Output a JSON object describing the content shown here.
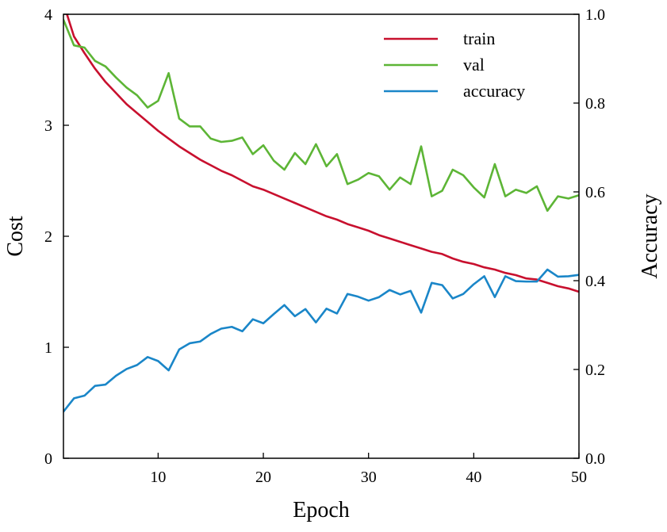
{
  "chart_data": {
    "type": "line",
    "xlabel": "Epoch",
    "ylabel_left": "Cost",
    "ylabel_right": "Accuracy",
    "xlim": [
      1,
      50
    ],
    "ylim_left": [
      0,
      4
    ],
    "ylim_right": [
      0.0,
      1.0
    ],
    "x_ticks": [
      10,
      20,
      30,
      40,
      50
    ],
    "x_tick_labels": [
      "10",
      "20",
      "30",
      "40",
      "50"
    ],
    "y_left_ticks": [
      0,
      1,
      2,
      3,
      4
    ],
    "y_left_tick_labels": [
      "0",
      "1",
      "2",
      "3",
      "4"
    ],
    "y_right_ticks": [
      0.0,
      0.2,
      0.4,
      0.6,
      0.8,
      1.0
    ],
    "y_right_tick_labels": [
      "0.0",
      "0.2",
      "0.4",
      "0.6",
      "0.8",
      "1.0"
    ],
    "grid": false,
    "legend_position": "top-right",
    "x": [
      1,
      2,
      3,
      4,
      5,
      6,
      7,
      8,
      9,
      10,
      11,
      12,
      13,
      14,
      15,
      16,
      17,
      18,
      19,
      20,
      21,
      22,
      23,
      24,
      25,
      26,
      27,
      28,
      29,
      30,
      31,
      32,
      33,
      34,
      35,
      36,
      37,
      38,
      39,
      40,
      41,
      42,
      43,
      44,
      45,
      46,
      47,
      48,
      49,
      50
    ],
    "series": [
      {
        "name": "train",
        "axis": "left",
        "color": "#c8102e",
        "values": [
          4.1,
          3.8,
          3.65,
          3.51,
          3.39,
          3.29,
          3.19,
          3.11,
          3.03,
          2.95,
          2.88,
          2.81,
          2.75,
          2.69,
          2.64,
          2.59,
          2.55,
          2.5,
          2.45,
          2.42,
          2.38,
          2.34,
          2.3,
          2.26,
          2.22,
          2.18,
          2.15,
          2.11,
          2.08,
          2.05,
          2.01,
          1.98,
          1.95,
          1.92,
          1.89,
          1.86,
          1.84,
          1.8,
          1.77,
          1.75,
          1.72,
          1.7,
          1.67,
          1.65,
          1.62,
          1.61,
          1.58,
          1.55,
          1.53,
          1.5
        ]
      },
      {
        "name": "val",
        "axis": "left",
        "color": "#5db536",
        "values": [
          3.95,
          3.72,
          3.7,
          3.58,
          3.53,
          3.43,
          3.34,
          3.27,
          3.16,
          3.22,
          3.47,
          3.06,
          2.99,
          2.99,
          2.88,
          2.85,
          2.86,
          2.89,
          2.74,
          2.82,
          2.68,
          2.6,
          2.75,
          2.65,
          2.83,
          2.63,
          2.74,
          2.47,
          2.51,
          2.57,
          2.54,
          2.42,
          2.53,
          2.47,
          2.81,
          2.36,
          2.41,
          2.6,
          2.55,
          2.44,
          2.35,
          2.65,
          2.36,
          2.42,
          2.39,
          2.45,
          2.23,
          2.36,
          2.34,
          2.37
        ]
      },
      {
        "name": "accuracy",
        "axis": "right",
        "color": "#1a86c8",
        "values": [
          0.105,
          0.135,
          0.141,
          0.163,
          0.166,
          0.186,
          0.201,
          0.21,
          0.228,
          0.219,
          0.198,
          0.245,
          0.259,
          0.263,
          0.28,
          0.292,
          0.296,
          0.286,
          0.313,
          0.304,
          0.325,
          0.345,
          0.32,
          0.336,
          0.306,
          0.337,
          0.326,
          0.37,
          0.364,
          0.355,
          0.363,
          0.379,
          0.369,
          0.377,
          0.328,
          0.395,
          0.39,
          0.36,
          0.37,
          0.392,
          0.41,
          0.363,
          0.41,
          0.399,
          0.398,
          0.398,
          0.425,
          0.409,
          0.41,
          0.413
        ]
      }
    ]
  }
}
